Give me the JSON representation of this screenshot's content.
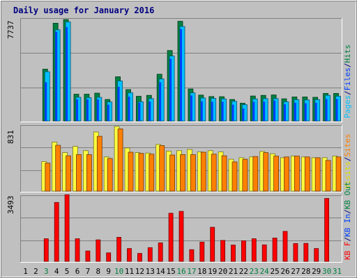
{
  "chart_data": [
    {
      "type": "bar",
      "panel": "hits",
      "title": "Daily usage for January 2016",
      "max_label": "7737",
      "ymax": 7737,
      "right_labels": [
        {
          "text": "Pages",
          "color": "#00c0ff"
        },
        {
          "text": "/",
          "color": "#000080"
        },
        {
          "text": "Files",
          "color": "#0040ff"
        },
        {
          "text": "/",
          "color": "#000080"
        },
        {
          "text": "Hits",
          "color": "#008040"
        }
      ],
      "categories": [
        "1",
        "2",
        "3",
        "4",
        "5",
        "6",
        "7",
        "8",
        "9",
        "10",
        "11",
        "12",
        "13",
        "14",
        "15",
        "16",
        "17",
        "18",
        "19",
        "20",
        "21",
        "22",
        "23",
        "24",
        "25",
        "26",
        "27",
        "28",
        "29",
        "30",
        "31"
      ],
      "series": [
        {
          "name": "Hits",
          "color": "#008040",
          "values": [
            0,
            0,
            3950,
            7450,
            7730,
            2040,
            2040,
            2120,
            1640,
            3370,
            2390,
            1880,
            1950,
            3560,
            5370,
            7600,
            2440,
            1970,
            1860,
            1850,
            1640,
            1350,
            1900,
            1950,
            1980,
            1690,
            1830,
            1830,
            1800,
            2100,
            2100
          ]
        },
        {
          "name": "Files",
          "color": "#0040ff",
          "values": [
            0,
            0,
            2950,
            6800,
            7150,
            1640,
            1640,
            1640,
            1240,
            2600,
            1850,
            1390,
            1480,
            2950,
            4750,
            7000,
            1940,
            1500,
            1460,
            1460,
            1240,
            950,
            1460,
            1460,
            1560,
            1270,
            1390,
            1350,
            1390,
            1670,
            1670
          ]
        },
        {
          "name": "Pages",
          "color": "#00c0ff",
          "values": [
            0,
            0,
            3750,
            6950,
            7550,
            1800,
            1780,
            1800,
            1450,
            3050,
            2150,
            1460,
            1700,
            3200,
            4950,
            7200,
            2140,
            1750,
            1720,
            1680,
            1500,
            1240,
            1680,
            1700,
            1700,
            1460,
            1620,
            1600,
            1620,
            1950,
            1880
          ]
        }
      ]
    },
    {
      "type": "bar",
      "panel": "visits",
      "max_label": "831",
      "ymax": 831,
      "right_labels": [
        {
          "text": "Visits",
          "color": "#e0e000"
        },
        {
          "text": "/",
          "color": "#000080"
        },
        {
          "text": "Sites",
          "color": "#ff8000"
        }
      ],
      "categories": [
        "1",
        "2",
        "3",
        "4",
        "5",
        "6",
        "7",
        "8",
        "9",
        "10",
        "11",
        "12",
        "13",
        "14",
        "15",
        "16",
        "17",
        "18",
        "19",
        "20",
        "21",
        "22",
        "23",
        "24",
        "25",
        "26",
        "27",
        "28",
        "29",
        "30",
        "31"
      ],
      "series": [
        {
          "name": "Visits",
          "color": "#ffff40",
          "values": [
            0,
            0,
            380,
            630,
            495,
            575,
            520,
            760,
            440,
            831,
            555,
            495,
            490,
            600,
            515,
            520,
            535,
            505,
            520,
            505,
            410,
            430,
            440,
            510,
            480,
            430,
            450,
            440,
            430,
            430,
            450
          ]
        },
        {
          "name": "Sites",
          "color": "#ff8000",
          "values": [
            0,
            0,
            360,
            590,
            455,
            470,
            470,
            705,
            420,
            800,
            500,
            485,
            475,
            585,
            465,
            470,
            470,
            500,
            475,
            455,
            375,
            410,
            445,
            495,
            450,
            440,
            450,
            440,
            430,
            395,
            440
          ]
        }
      ]
    },
    {
      "type": "bar",
      "panel": "kbytes",
      "max_label": "3493",
      "ymax": 3493,
      "right_labels": [
        {
          "text": "KB F",
          "color": "#ff0000"
        },
        {
          "text": "/",
          "color": "#000080"
        },
        {
          "text": "KB In",
          "color": "#0040ff"
        },
        {
          "text": "/",
          "color": "#000080"
        },
        {
          "text": "KB Out",
          "color": "#008040"
        }
      ],
      "categories": [
        "1",
        "2",
        "3",
        "4",
        "5",
        "6",
        "7",
        "8",
        "9",
        "10",
        "11",
        "12",
        "13",
        "14",
        "15",
        "16",
        "17",
        "18",
        "19",
        "20",
        "21",
        "22",
        "23",
        "24",
        "25",
        "26",
        "27",
        "28",
        "29",
        "30",
        "31"
      ],
      "series": [
        {
          "name": "KB F",
          "color": "#ff0000",
          "values": [
            0,
            0,
            1220,
            3180,
            3600,
            1220,
            560,
            1160,
            460,
            1300,
            690,
            430,
            740,
            1000,
            2600,
            2700,
            630,
            1040,
            1840,
            1130,
            880,
            1110,
            1220,
            890,
            1260,
            1620,
            960,
            970,
            690,
            3400,
            0
          ]
        }
      ]
    }
  ],
  "day_labels": [
    {
      "text": "1",
      "color": "#000000"
    },
    {
      "text": "2",
      "color": "#000000"
    },
    {
      "text": "3",
      "color": "#008040"
    },
    {
      "text": "4",
      "color": "#000000"
    },
    {
      "text": "5",
      "color": "#000000"
    },
    {
      "text": "6",
      "color": "#000000"
    },
    {
      "text": "7",
      "color": "#000000"
    },
    {
      "text": "8",
      "color": "#000000"
    },
    {
      "text": "9",
      "color": "#000000"
    },
    {
      "text": "10",
      "color": "#008040"
    },
    {
      "text": "11",
      "color": "#000000"
    },
    {
      "text": "12",
      "color": "#000000"
    },
    {
      "text": "13",
      "color": "#000000"
    },
    {
      "text": "14",
      "color": "#000000"
    },
    {
      "text": "15",
      "color": "#000000"
    },
    {
      "text": "16",
      "color": "#008040"
    },
    {
      "text": "17",
      "color": "#008040"
    },
    {
      "text": "18",
      "color": "#000000"
    },
    {
      "text": "19",
      "color": "#000000"
    },
    {
      "text": "20",
      "color": "#000000"
    },
    {
      "text": "21",
      "color": "#000000"
    },
    {
      "text": "22",
      "color": "#000000"
    },
    {
      "text": "23",
      "color": "#008040"
    },
    {
      "text": "24",
      "color": "#008040"
    },
    {
      "text": "25",
      "color": "#000000"
    },
    {
      "text": "26",
      "color": "#000000"
    },
    {
      "text": "27",
      "color": "#000000"
    },
    {
      "text": "28",
      "color": "#000000"
    },
    {
      "text": "29",
      "color": "#000000"
    },
    {
      "text": "30",
      "color": "#008040"
    },
    {
      "text": "31",
      "color": "#008040"
    }
  ],
  "colors": {
    "background": "#c0c0c0",
    "plot_background": "#c0c0c0",
    "title": "#000080",
    "gridline": "#808080"
  }
}
